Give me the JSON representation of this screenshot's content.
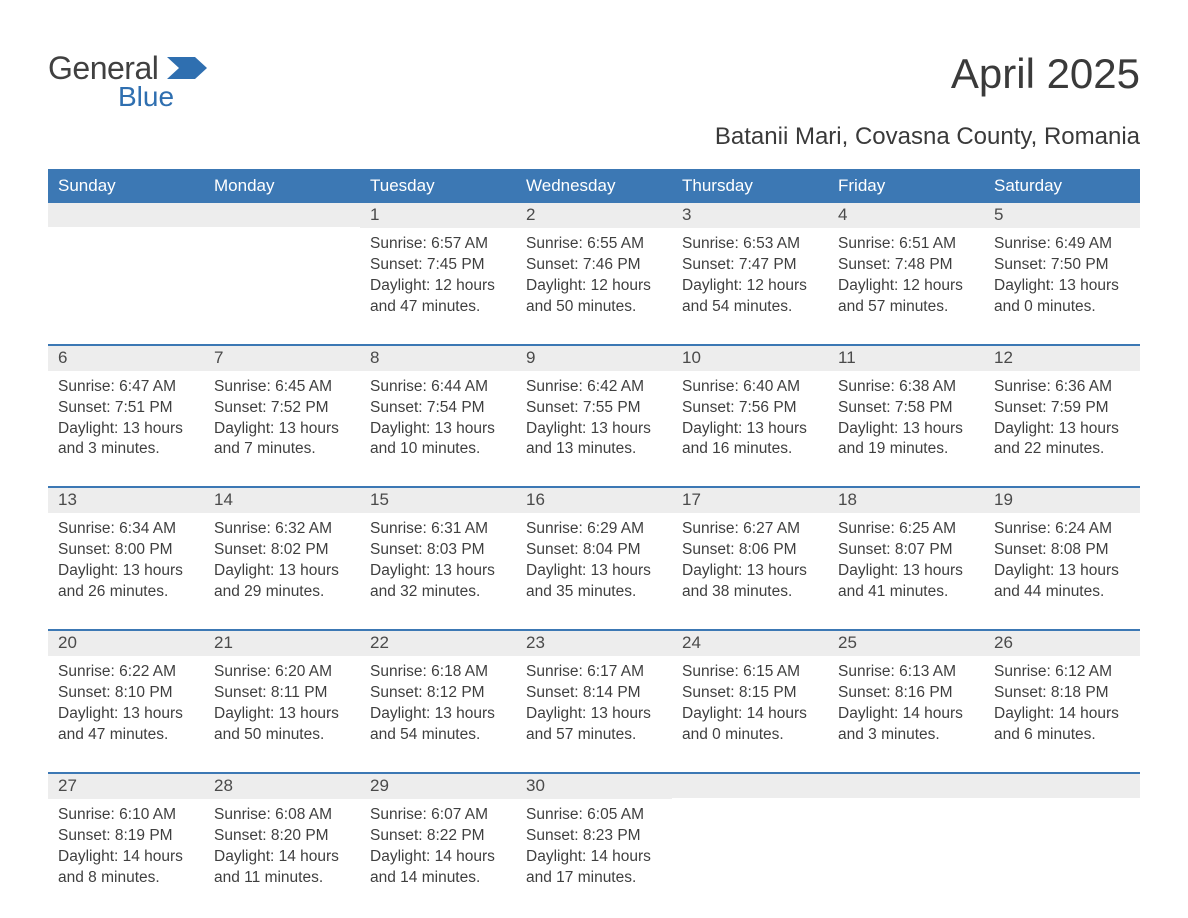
{
  "logo": {
    "word1": "General",
    "word2": "Blue"
  },
  "title": "April 2025",
  "subtitle": "Batanii Mari, Covasna County, Romania",
  "colors": {
    "header_bg": "#3c78b4",
    "header_text": "#ffffff",
    "daynum_bg": "#ededed",
    "row_border": "#3c78b4",
    "body_text": "#3f3f3f",
    "logo_gray": "#404040",
    "logo_blue": "#2f6fb0",
    "page_bg": "#ffffff"
  },
  "typography": {
    "title_fontsize": 42,
    "subtitle_fontsize": 24,
    "header_fontsize": 17,
    "daynum_fontsize": 17,
    "body_fontsize": 15.5
  },
  "columns": [
    "Sunday",
    "Monday",
    "Tuesday",
    "Wednesday",
    "Thursday",
    "Friday",
    "Saturday"
  ],
  "weeks": [
    [
      {
        "day": "",
        "sunrise": "",
        "sunset": "",
        "daylight": ""
      },
      {
        "day": "",
        "sunrise": "",
        "sunset": "",
        "daylight": ""
      },
      {
        "day": "1",
        "sunrise": "Sunrise: 6:57 AM",
        "sunset": "Sunset: 7:45 PM",
        "daylight": "Daylight: 12 hours and 47 minutes."
      },
      {
        "day": "2",
        "sunrise": "Sunrise: 6:55 AM",
        "sunset": "Sunset: 7:46 PM",
        "daylight": "Daylight: 12 hours and 50 minutes."
      },
      {
        "day": "3",
        "sunrise": "Sunrise: 6:53 AM",
        "sunset": "Sunset: 7:47 PM",
        "daylight": "Daylight: 12 hours and 54 minutes."
      },
      {
        "day": "4",
        "sunrise": "Sunrise: 6:51 AM",
        "sunset": "Sunset: 7:48 PM",
        "daylight": "Daylight: 12 hours and 57 minutes."
      },
      {
        "day": "5",
        "sunrise": "Sunrise: 6:49 AM",
        "sunset": "Sunset: 7:50 PM",
        "daylight": "Daylight: 13 hours and 0 minutes."
      }
    ],
    [
      {
        "day": "6",
        "sunrise": "Sunrise: 6:47 AM",
        "sunset": "Sunset: 7:51 PM",
        "daylight": "Daylight: 13 hours and 3 minutes."
      },
      {
        "day": "7",
        "sunrise": "Sunrise: 6:45 AM",
        "sunset": "Sunset: 7:52 PM",
        "daylight": "Daylight: 13 hours and 7 minutes."
      },
      {
        "day": "8",
        "sunrise": "Sunrise: 6:44 AM",
        "sunset": "Sunset: 7:54 PM",
        "daylight": "Daylight: 13 hours and 10 minutes."
      },
      {
        "day": "9",
        "sunrise": "Sunrise: 6:42 AM",
        "sunset": "Sunset: 7:55 PM",
        "daylight": "Daylight: 13 hours and 13 minutes."
      },
      {
        "day": "10",
        "sunrise": "Sunrise: 6:40 AM",
        "sunset": "Sunset: 7:56 PM",
        "daylight": "Daylight: 13 hours and 16 minutes."
      },
      {
        "day": "11",
        "sunrise": "Sunrise: 6:38 AM",
        "sunset": "Sunset: 7:58 PM",
        "daylight": "Daylight: 13 hours and 19 minutes."
      },
      {
        "day": "12",
        "sunrise": "Sunrise: 6:36 AM",
        "sunset": "Sunset: 7:59 PM",
        "daylight": "Daylight: 13 hours and 22 minutes."
      }
    ],
    [
      {
        "day": "13",
        "sunrise": "Sunrise: 6:34 AM",
        "sunset": "Sunset: 8:00 PM",
        "daylight": "Daylight: 13 hours and 26 minutes."
      },
      {
        "day": "14",
        "sunrise": "Sunrise: 6:32 AM",
        "sunset": "Sunset: 8:02 PM",
        "daylight": "Daylight: 13 hours and 29 minutes."
      },
      {
        "day": "15",
        "sunrise": "Sunrise: 6:31 AM",
        "sunset": "Sunset: 8:03 PM",
        "daylight": "Daylight: 13 hours and 32 minutes."
      },
      {
        "day": "16",
        "sunrise": "Sunrise: 6:29 AM",
        "sunset": "Sunset: 8:04 PM",
        "daylight": "Daylight: 13 hours and 35 minutes."
      },
      {
        "day": "17",
        "sunrise": "Sunrise: 6:27 AM",
        "sunset": "Sunset: 8:06 PM",
        "daylight": "Daylight: 13 hours and 38 minutes."
      },
      {
        "day": "18",
        "sunrise": "Sunrise: 6:25 AM",
        "sunset": "Sunset: 8:07 PM",
        "daylight": "Daylight: 13 hours and 41 minutes."
      },
      {
        "day": "19",
        "sunrise": "Sunrise: 6:24 AM",
        "sunset": "Sunset: 8:08 PM",
        "daylight": "Daylight: 13 hours and 44 minutes."
      }
    ],
    [
      {
        "day": "20",
        "sunrise": "Sunrise: 6:22 AM",
        "sunset": "Sunset: 8:10 PM",
        "daylight": "Daylight: 13 hours and 47 minutes."
      },
      {
        "day": "21",
        "sunrise": "Sunrise: 6:20 AM",
        "sunset": "Sunset: 8:11 PM",
        "daylight": "Daylight: 13 hours and 50 minutes."
      },
      {
        "day": "22",
        "sunrise": "Sunrise: 6:18 AM",
        "sunset": "Sunset: 8:12 PM",
        "daylight": "Daylight: 13 hours and 54 minutes."
      },
      {
        "day": "23",
        "sunrise": "Sunrise: 6:17 AM",
        "sunset": "Sunset: 8:14 PM",
        "daylight": "Daylight: 13 hours and 57 minutes."
      },
      {
        "day": "24",
        "sunrise": "Sunrise: 6:15 AM",
        "sunset": "Sunset: 8:15 PM",
        "daylight": "Daylight: 14 hours and 0 minutes."
      },
      {
        "day": "25",
        "sunrise": "Sunrise: 6:13 AM",
        "sunset": "Sunset: 8:16 PM",
        "daylight": "Daylight: 14 hours and 3 minutes."
      },
      {
        "day": "26",
        "sunrise": "Sunrise: 6:12 AM",
        "sunset": "Sunset: 8:18 PM",
        "daylight": "Daylight: 14 hours and 6 minutes."
      }
    ],
    [
      {
        "day": "27",
        "sunrise": "Sunrise: 6:10 AM",
        "sunset": "Sunset: 8:19 PM",
        "daylight": "Daylight: 14 hours and 8 minutes."
      },
      {
        "day": "28",
        "sunrise": "Sunrise: 6:08 AM",
        "sunset": "Sunset: 8:20 PM",
        "daylight": "Daylight: 14 hours and 11 minutes."
      },
      {
        "day": "29",
        "sunrise": "Sunrise: 6:07 AM",
        "sunset": "Sunset: 8:22 PM",
        "daylight": "Daylight: 14 hours and 14 minutes."
      },
      {
        "day": "30",
        "sunrise": "Sunrise: 6:05 AM",
        "sunset": "Sunset: 8:23 PM",
        "daylight": "Daylight: 14 hours and 17 minutes."
      },
      {
        "day": "",
        "sunrise": "",
        "sunset": "",
        "daylight": ""
      },
      {
        "day": "",
        "sunrise": "",
        "sunset": "",
        "daylight": ""
      },
      {
        "day": "",
        "sunrise": "",
        "sunset": "",
        "daylight": ""
      }
    ]
  ]
}
